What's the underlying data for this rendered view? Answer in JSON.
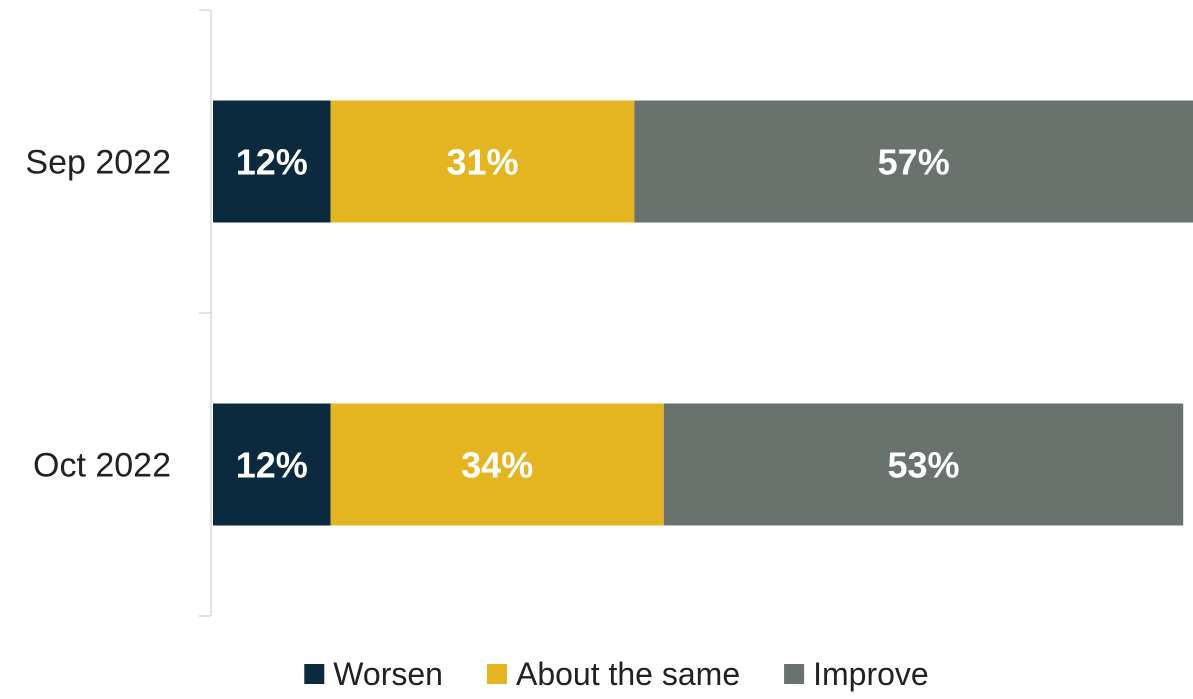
{
  "chart_data": {
    "type": "bar",
    "orientation": "horizontal",
    "stacked": true,
    "categories": [
      "Sep 2022",
      "Oct 2022"
    ],
    "series": [
      {
        "name": "Worsen",
        "values": [
          12,
          12
        ],
        "color": "#0c2a3e",
        "labels": [
          "12%",
          "12%"
        ]
      },
      {
        "name": "About the same",
        "values": [
          31,
          34
        ],
        "color": "#e5b421",
        "labels": [
          "31%",
          "34%"
        ]
      },
      {
        "name": "Improve",
        "values": [
          57,
          53
        ],
        "color": "#69726d",
        "labels": [
          "57%",
          "53%"
        ]
      }
    ],
    "xlim": [
      0,
      100
    ],
    "grid": false,
    "legend_position": "bottom"
  }
}
